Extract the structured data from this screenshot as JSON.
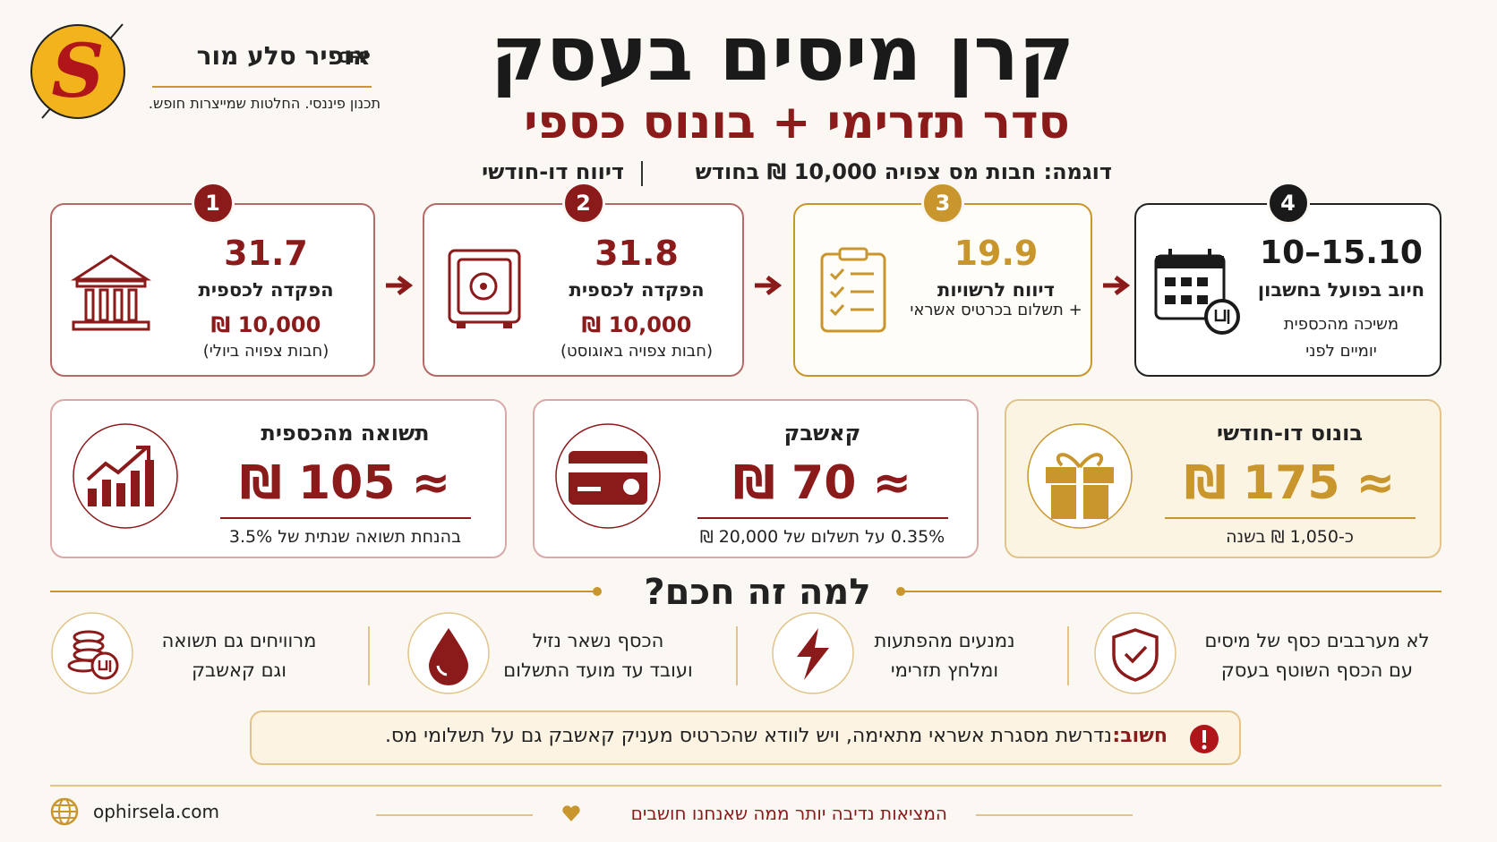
{
  "header": {
    "logo_letter": "S",
    "name": "אופיר סלע מור",
    "credential": "CFP",
    "tagline": "תכנון פיננסי. החלטות שמייצרות חופש.",
    "title": "קרן מיסים בעסק",
    "subtitle": "סדר תזרימי + בונוס כספי",
    "example": "דוגמה: חבות מס צפויה 10,000 ₪ בחודש",
    "reporting": "דיווח דו-חודשי"
  },
  "steps": [
    {
      "number": "1",
      "date": "31.7",
      "label": "הפקדה לכספית",
      "lines": [
        "10,000 ₪",
        "(חבות צפויה ביולי)"
      ]
    },
    {
      "number": "2",
      "date": "31.8",
      "label": "הפקדה לכספית",
      "lines": [
        "10,000 ₪",
        "(חבות צפויה באוגוסט)"
      ]
    },
    {
      "number": "3",
      "date": "19.9",
      "label": "דיווח לרשויות",
      "lines": [
        "+ תשלום בכרטיס אשראי"
      ]
    },
    {
      "number": "4",
      "date": "10–15.10",
      "label": "חיוב בפועל בחשבון",
      "lines": [
        "משיכה מהכספית",
        "יומיים לפני"
      ]
    }
  ],
  "benefits": [
    {
      "title": "תשואה מהכספית",
      "value": "≈ 105 ₪",
      "note": "בהנחת תשואה שנתית של 3.5%"
    },
    {
      "title": "קאשבק",
      "value": "≈ 70 ₪",
      "note": "0.35% על תשלום של 20,000 ₪"
    },
    {
      "title": "בונוס דו-חודשי",
      "value": "≈ 175 ₪",
      "note": "כ-1,050 ₪ בשנה"
    }
  ],
  "why": {
    "title": "למה זה חכם?",
    "items": [
      {
        "lines": [
          "לא מערבבים כסף של מיסים",
          "עם הכסף השוטף בעסק"
        ]
      },
      {
        "lines": [
          "נמנעים מהפתעות",
          "ומלחץ תזרימי"
        ]
      },
      {
        "lines": [
          "הכסף נשאר נזיל",
          "ועובד עד מועד התשלום"
        ]
      },
      {
        "lines": [
          "מרוויחים גם תשואה",
          "וגם קאשבק"
        ]
      }
    ]
  },
  "notice": {
    "label": "חשוב:",
    "text": "נדרשת מסגרת אשראי מתאימה, ויש לוודא שהכרטיס מעניק קאשבק גם על תשלומי מס."
  },
  "footer": {
    "website": "ophirsela.com",
    "motto": "המציאות נדיבה יותר ממה שאנחנו חושבים"
  }
}
